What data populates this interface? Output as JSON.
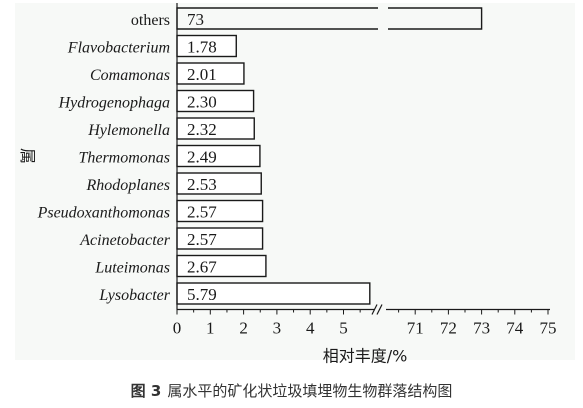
{
  "chart_data": {
    "type": "bar",
    "orientation": "horizontal",
    "ylabel": "属",
    "xlabel": "相对丰度/%",
    "broken_axis": true,
    "xlim_lower": [
      0,
      5.8
    ],
    "xlim_upper": [
      70,
      75
    ],
    "xticks_lower": [
      "0",
      "1",
      "2",
      "3",
      "4",
      "5"
    ],
    "xticks_upper": [
      "71",
      "72",
      "73",
      "74",
      "75"
    ],
    "categories": [
      "others",
      "Flavobacterium",
      "Comamonas",
      "Hydrogenophaga",
      "Hylemonella",
      "Thermomonas",
      "Rhodoplanes",
      "Pseudoxanthomonas",
      "Acinetobacter",
      "Luteimonas",
      "Lysobacter"
    ],
    "values": [
      73,
      1.78,
      2.01,
      2.3,
      2.32,
      2.49,
      2.53,
      2.57,
      2.57,
      2.67,
      5.79
    ],
    "value_labels": [
      "73",
      "1.78",
      "2.01",
      "2.30",
      "2.32",
      "2.49",
      "2.53",
      "2.57",
      "2.57",
      "2.67",
      "5.79"
    ],
    "bar_fill": "#ffffff",
    "bar_stroke": "#1a1a1a",
    "plot_background": "#f7f9f7"
  },
  "caption": {
    "label": "图 3",
    "text": "属水平的矿化状垃圾填埋物生物群落结构图"
  }
}
